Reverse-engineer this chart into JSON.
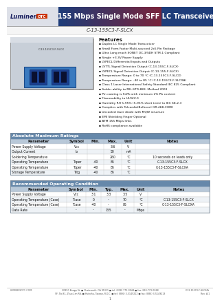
{
  "title": "155 Mbps Single Mode SFF LC Transceiver",
  "part_number": "C-13-155C3-F-SLCX",
  "features_title": "Features",
  "features": [
    "Duplex LC Single Mode Transceiver",
    "Small Form Factor Multi-sourced 2x5 Pin Package",
    "Ultra Long reach SONET OC-3/SDH STM-1 Compliant",
    "Single +3.3V Power Supply",
    "LVPECL Differential Inputs and Outputs",
    "LVTTL Signal Detection Output (C-13-155C-F-SLCX)",
    "LVPECL Signal Detection Output (C-13-155-F-SLCX)",
    "Temperature Range: 0 to 70 °C (C-13-155C3-F-SLCX)",
    "Temperature Range: -40 to 85 °C (C-13-155C3-F-SLCXA)",
    "Class 1 Laser International Safety Standard IEC 825 Compliant",
    "Solder ability to MIL-STD-883, Method 2003",
    "Pin coating is SnPb with minimum 2% Pb content",
    "Flammability to UL94V-0",
    "Humidity RH 5-95% (5-95% short term) to IEC 68-2-3",
    "Complies with Telcordia(Bellcore) GR-468-CORE",
    "Uncooled laser diode with MQW structure",
    "EMI Shielding Finger Optional",
    "ATM 155 Mbps links",
    "RoHS compliance available"
  ],
  "abs_max_title": "Absolute Maximum Ratings",
  "abs_max_header": [
    "Parameter",
    "Symbol",
    "Min.",
    "Max.",
    "Unit",
    "Notes"
  ],
  "abs_max_rows": [
    [
      "Power Supply Voltage",
      "Vcc",
      "",
      "3.6",
      "V",
      ""
    ],
    [
      "Output Current",
      "Io",
      "",
      "50",
      "mA",
      ""
    ],
    [
      "Soldering Temperature",
      "",
      "",
      "260",
      "°C",
      "10 seconds on leads only"
    ],
    [
      "Operating Temperature",
      "Toper",
      "-40",
      "85",
      "°C",
      "C-13-155C3-F-SLCX"
    ],
    [
      "Operating Temperature",
      "Toper",
      "-40",
      "85",
      "°C",
      "C-13-155C3-F-SLCXA"
    ],
    [
      "Storage Temperature",
      "Tstg",
      "-40",
      "85",
      "°C",
      ""
    ]
  ],
  "rec_op_title": "Recommended Operating Condition",
  "rec_op_header": [
    "Parameter",
    "Symbol",
    "Min.",
    "Typ.",
    "Max.",
    "Unit",
    "Notes"
  ],
  "rec_op_rows": [
    [
      "Power Supply Voltage",
      "Vcc",
      "3.1",
      "3.3",
      "3.5",
      "V",
      ""
    ],
    [
      "Operating Temperature (Case)",
      "Tcase",
      "0",
      "-",
      "70",
      "°C",
      "C-13-155C3-F-SLCX"
    ],
    [
      "Operating Temperature (Case)",
      "Tcase",
      "-40",
      "-",
      "85",
      "°C",
      "C-13-155C3-F-SLCXA"
    ],
    [
      "Data Rate",
      "-",
      "-",
      "155",
      "-",
      "Mbps",
      ""
    ]
  ],
  "footer_left": "LUMINENOTC.COM",
  "footer_addr1": "20950 Knapp St. ■ Chatsworth, CA 91311 ■ tel: (818) 773-0044 ■ fax: 818-773-0088",
  "footer_addr2": "9F, No.81, Zhuo-Lan Rd. ■ Hsinchu, Taiwan, R.O.C. ■ tel: (886) 3-5149212 ■ fax: (886) 3-5149213",
  "footer_right": "C-13-155C3-F-SLCX/A\nRev: A-1",
  "header_blue": "#1e3d7a",
  "header_blue2": "#2a5ca8",
  "header_red": "#8b1a1a",
  "logo_bg": "#e8e8e8",
  "table_title_bg": "#6688aa",
  "table_header_bg": "#b8c8d8",
  "row_bg_even": "#ffffff",
  "row_bg_odd": "#eef2f6"
}
